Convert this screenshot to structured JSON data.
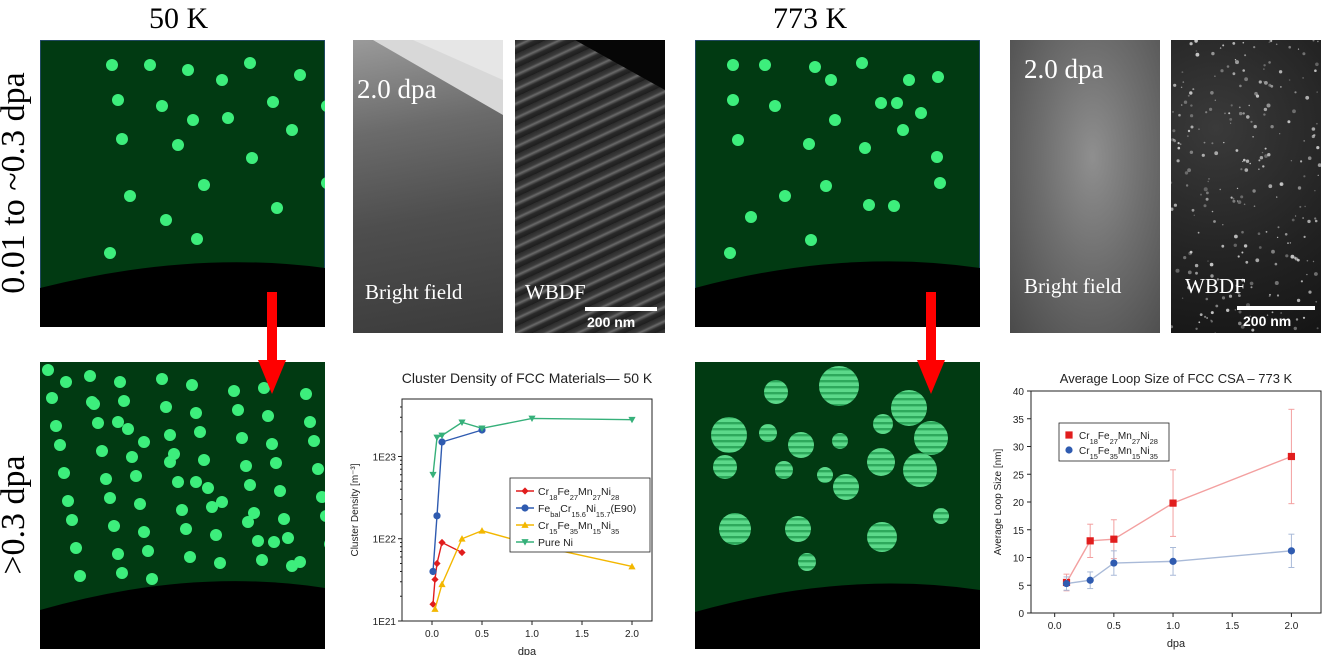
{
  "headers": {
    "left_temp": "50 K",
    "right_temp": "773 K"
  },
  "side_labels": {
    "top": "0.01 to ~0.3 dpa",
    "bottom": ">0.3 dpa"
  },
  "tem": {
    "dose_label": "2.0 dpa",
    "bright_field": "Bright field",
    "wbdf": "WBDF",
    "scale_bar": "200 nm"
  },
  "colors": {
    "matrix": "#013a12",
    "cluster": "#3dee7c",
    "arrow": "#ff0000"
  },
  "chart_data": [
    {
      "type": "line",
      "title": "Cluster Density of FCC Materials— 50 K",
      "xlabel": "dpa",
      "ylabel": "Cluster Density [m⁻³]",
      "yscale": "log",
      "xlim": [
        -0.3,
        2.2
      ],
      "ylim": [
        1e+21,
        5e+23
      ],
      "xticks": [
        "0.0",
        "0.5",
        "1.0",
        "1.5",
        "2.0"
      ],
      "yticks": [
        "1E21",
        "1E22",
        "1E23"
      ],
      "legend": "center-right",
      "series": [
        {
          "name": "Cr18Fe27Mn27Ni28",
          "color": "#e11d1d",
          "marker": "diamond",
          "x": [
            0.01,
            0.03,
            0.05,
            0.1,
            0.3
          ],
          "y": [
            1.6e+21,
            3.2e+21,
            5e+21,
            9e+21,
            6.8e+21
          ]
        },
        {
          "name": "FebalCr15.6Ni15.7(E90)",
          "color": "#2f5bb0",
          "marker": "circle",
          "x": [
            0.01,
            0.05,
            0.1,
            0.5
          ],
          "y": [
            4e+21,
            1.9e+22,
            1.5e+23,
            2.1e+23
          ]
        },
        {
          "name": "Cr15Fe35Mn15Ni35",
          "color": "#f3b700",
          "marker": "triangle",
          "x": [
            0.03,
            0.1,
            0.3,
            0.5,
            1.0,
            2.0
          ],
          "y": [
            1.4e+21,
            2.8e+21,
            1e+22,
            1.25e+22,
            8.5e+21,
            4.6e+21
          ]
        },
        {
          "name": "Pure Ni",
          "color": "#36b07a",
          "marker": "triangle-down",
          "x": [
            0.01,
            0.05,
            0.1,
            0.3,
            0.5,
            1.0,
            2.0
          ],
          "y": [
            6e+22,
            1.7e+23,
            1.8e+23,
            2.6e+23,
            2.2e+23,
            2.9e+23,
            2.8e+23
          ]
        }
      ]
    },
    {
      "type": "line",
      "title": "Average Loop Size of FCC CSA – 773 K",
      "xlabel": "dpa",
      "ylabel": "Average Loop Size [nm]",
      "xlim": [
        -0.2,
        2.25
      ],
      "ylim": [
        0,
        40
      ],
      "xticks": [
        "0.0",
        "0.5",
        "1.0",
        "1.5",
        "2.0"
      ],
      "yticks": [
        "0",
        "5",
        "10",
        "15",
        "20",
        "25",
        "30",
        "35",
        "40"
      ],
      "legend": "top-left",
      "series": [
        {
          "name": "Cr18Fe27Mn27Ni28",
          "color": "#e11d1d",
          "marker": "square",
          "x": [
            0.1,
            0.3,
            0.5,
            1.0,
            2.0
          ],
          "y": [
            5.5,
            13.0,
            13.3,
            19.8,
            28.2
          ],
          "err": [
            1.5,
            3.0,
            3.5,
            6.0,
            8.5
          ]
        },
        {
          "name": "Cr15Fe35Mn15Ni35",
          "color": "#2f5bb0",
          "marker": "circle",
          "x": [
            0.1,
            0.3,
            0.5,
            1.0,
            2.0
          ],
          "y": [
            5.3,
            5.9,
            9.0,
            9.3,
            11.2
          ],
          "err": [
            1.2,
            1.5,
            2.2,
            2.5,
            3.0
          ]
        }
      ]
    }
  ]
}
